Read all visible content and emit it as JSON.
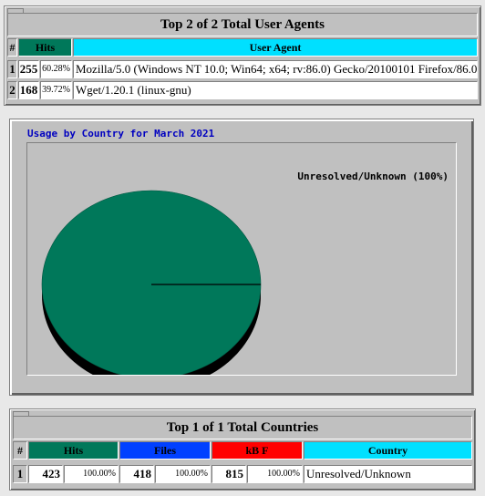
{
  "agents": {
    "title": "Top 2 of 2 Total User Agents",
    "headers": {
      "num": "#",
      "hits": "Hits",
      "agent": "User Agent"
    },
    "rows": [
      {
        "num": "1",
        "hits": "255",
        "pct": "60.28%",
        "agent": "Mozilla/5.0 (Windows NT 10.0; Win64; x64; rv:86.0) Gecko/20100101 Firefox/86.0"
      },
      {
        "num": "2",
        "hits": "168",
        "pct": "39.72%",
        "agent": "Wget/1.20.1 (linux-gnu)"
      }
    ]
  },
  "chart_data": {
    "type": "pie",
    "title": "Usage by Country for March 2021",
    "slices": [
      {
        "label": "Unresolved/Unknown (100%)",
        "value": 100,
        "color": "#00785a"
      }
    ]
  },
  "countries": {
    "title": "Top 1 of 1 Total Countries",
    "headers": {
      "num": "#",
      "hits": "Hits",
      "files": "Files",
      "kbf": "kB F",
      "country": "Country"
    },
    "rows": [
      {
        "num": "1",
        "hits": "423",
        "hits_pct": "100.00%",
        "files": "418",
        "files_pct": "100.00%",
        "kbf": "815",
        "kbf_pct": "100.00%",
        "country": "Unresolved/Unknown"
      }
    ]
  },
  "colors": {
    "hits": "#00785a",
    "files": "#0040ff",
    "kbf": "#ff0000",
    "agent": "#00e0ff",
    "panel": "#c0c0c0"
  }
}
